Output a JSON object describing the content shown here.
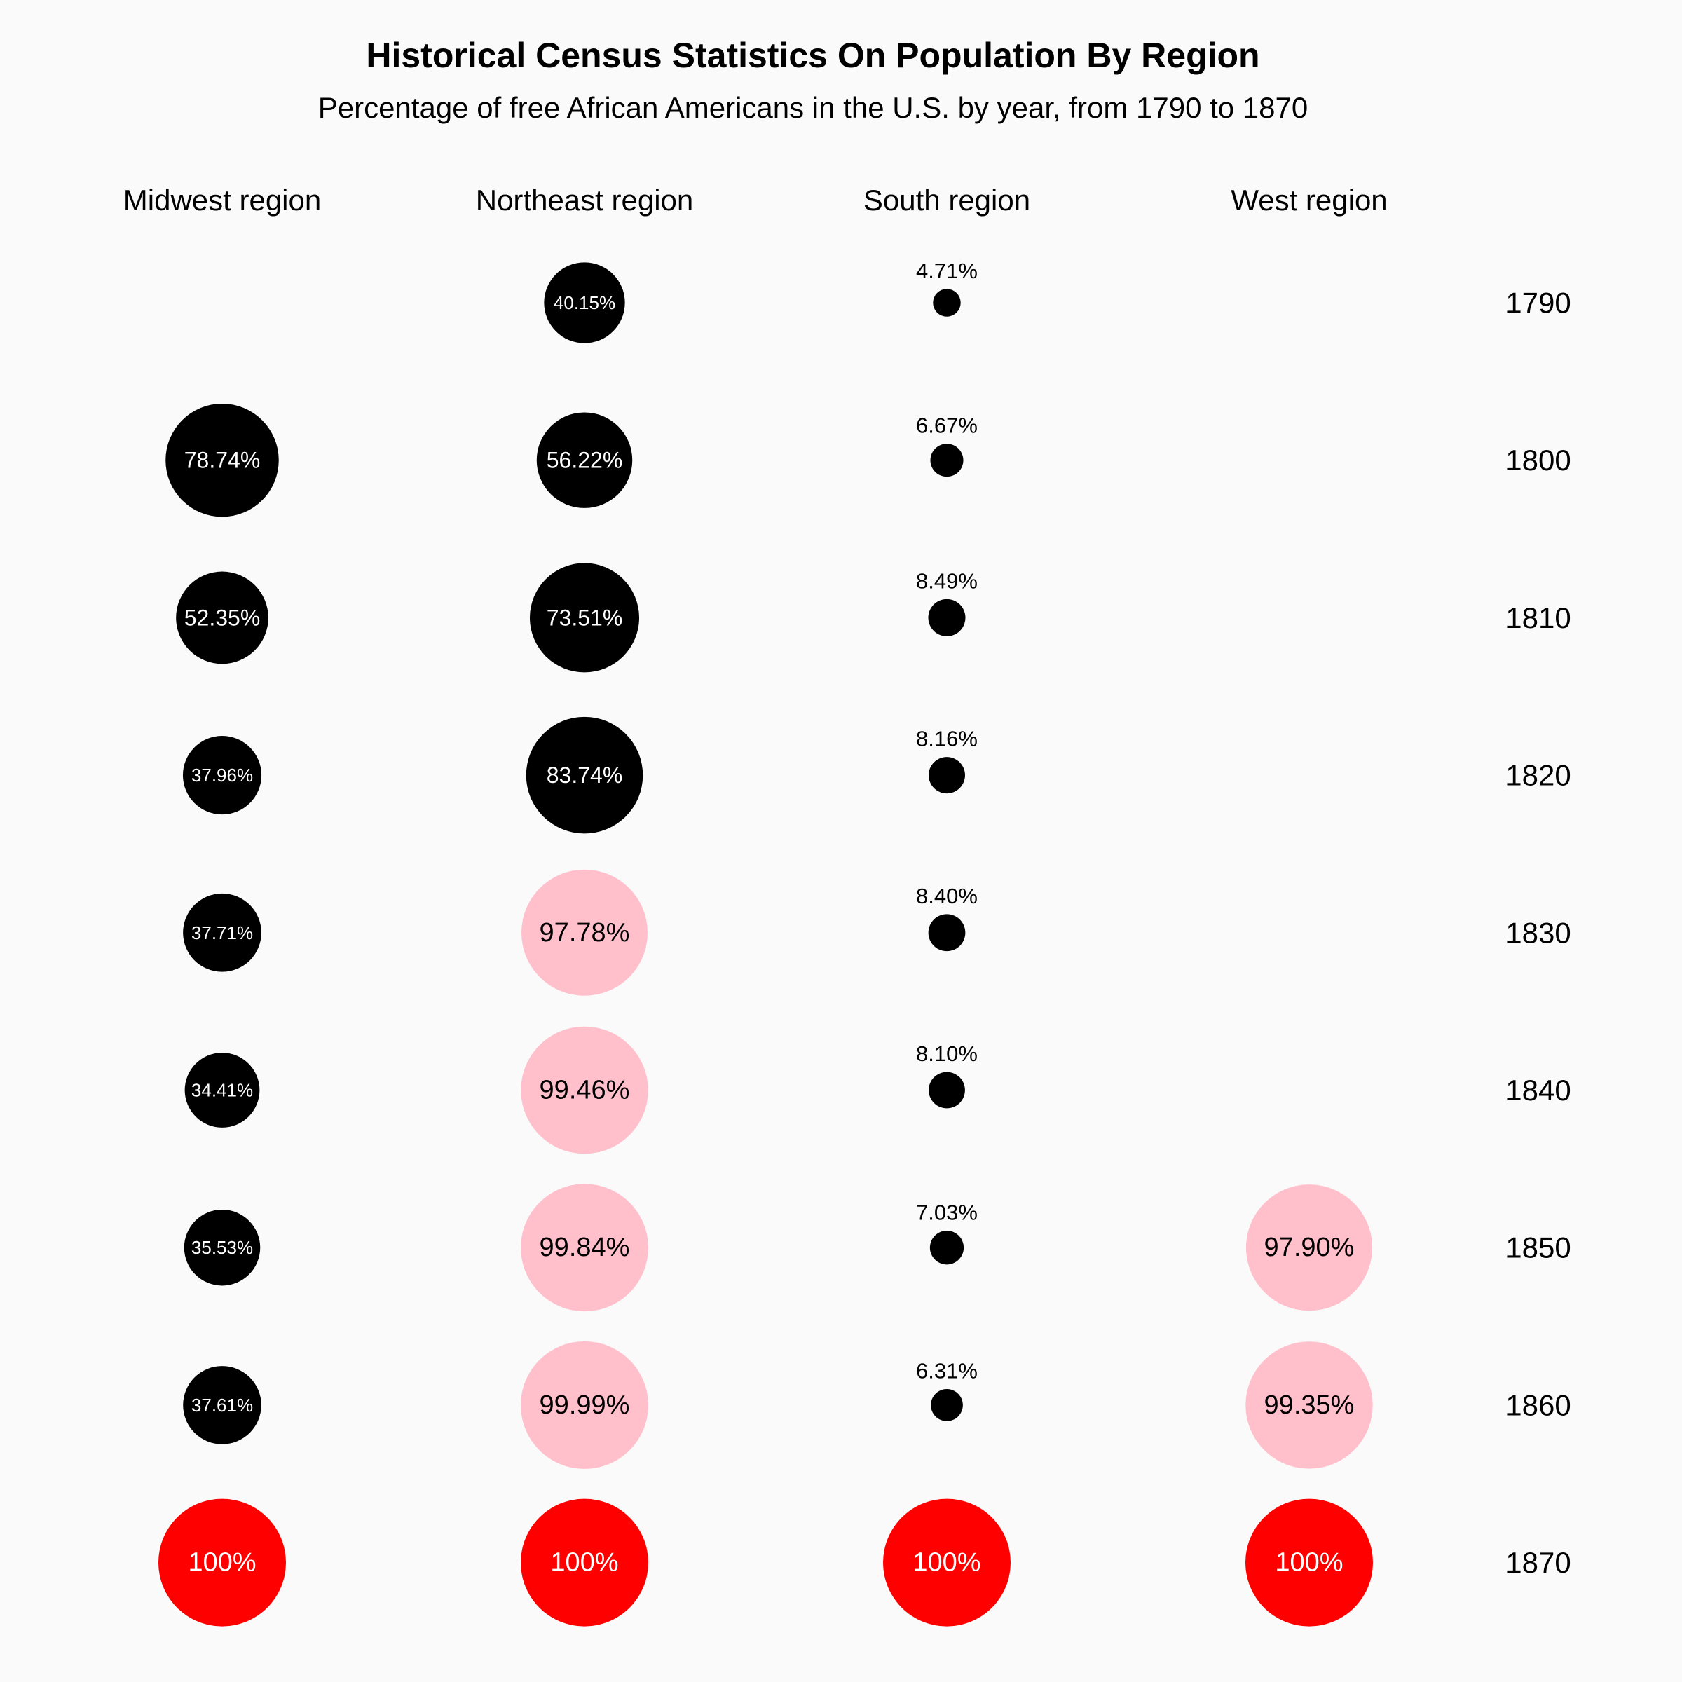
{
  "chart_data": {
    "type": "bubble-grid",
    "title": "Historical Census Statistics On Population By Region",
    "subtitle": "Percentage of free African Americans in the U.S. by year, from 1790 to 1870",
    "regions": [
      "Midwest region",
      "Northeast region",
      "South region",
      "West region"
    ],
    "years": [
      "1790",
      "1800",
      "1810",
      "1820",
      "1830",
      "1840",
      "1850",
      "1860",
      "1870"
    ],
    "values": [
      [
        null,
        78.74,
        52.35,
        37.96,
        37.71,
        34.41,
        35.53,
        37.61,
        100
      ],
      [
        40.15,
        56.22,
        73.51,
        83.74,
        97.78,
        99.46,
        99.84,
        99.99,
        100
      ],
      [
        4.71,
        6.67,
        8.49,
        8.16,
        8.4,
        8.1,
        7.03,
        6.31,
        100
      ],
      [
        null,
        null,
        null,
        null,
        null,
        null,
        97.9,
        99.35,
        100
      ]
    ],
    "labels": [
      [
        "",
        "78.74%",
        "52.35%",
        "37.96%",
        "37.71%",
        "34.41%",
        "35.53%",
        "37.61%",
        "100%"
      ],
      [
        "40.15%",
        "56.22%",
        "73.51%",
        "83.74%",
        "97.78%",
        "99.46%",
        "99.84%",
        "99.99%",
        "100%"
      ],
      [
        "4.71%",
        "6.67%",
        "8.49%",
        "8.16%",
        "8.40%",
        "8.10%",
        "7.03%",
        "6.31%",
        "100%"
      ],
      [
        "",
        "",
        "",
        "",
        "",
        "",
        "97.90%",
        "99.35%",
        "100%"
      ]
    ],
    "colors": {
      "below_90": "#000000",
      "from_90_to_99_99": "#ffc0cb",
      "at_100": "#ff0000",
      "background": "#fafafa"
    },
    "grid": false,
    "legend": "none"
  }
}
